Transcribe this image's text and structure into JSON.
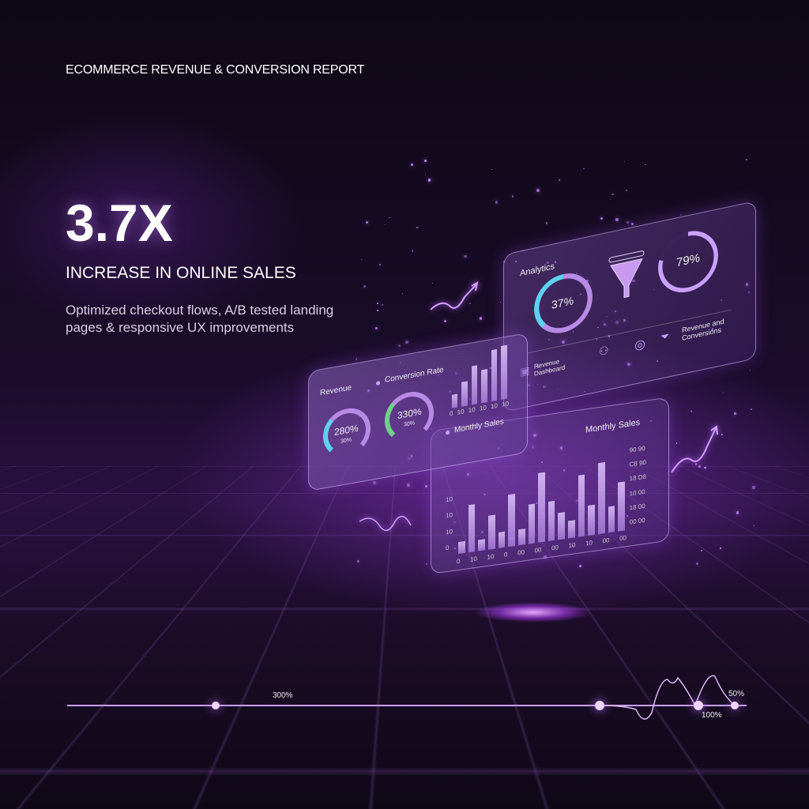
{
  "header": {
    "title": "ECOMMERCE REVENUE & CONVERSION REPORT"
  },
  "hero": {
    "metric": "3.7X",
    "headline": "INCREASE IN ONLINE SALES",
    "description": "Optimized checkout flows, A/B tested landing pages & responsive UX improvements"
  },
  "analytics_panel": {
    "title": "Analytics",
    "donut_value": "37%",
    "ring_value": "79%",
    "footer_left": "Revenue Dashboard",
    "footer_right": "Revenue and Conversions",
    "donut_fraction": 0.37,
    "ring_fraction": 0.79
  },
  "revenue_panel": {
    "title": "Revenue",
    "legend": "Conversion Rate",
    "gauge1_value": "280%",
    "gauge1_sub": "30%",
    "gauge2_value": "330%",
    "gauge2_sub": "30%",
    "mini_bars": [
      0.25,
      0.45,
      0.72,
      0.62,
      0.95,
      1.0
    ],
    "mini_labels": [
      "0",
      "10",
      "10",
      "10",
      "10",
      "10"
    ],
    "sales_label": "Monthly Sales"
  },
  "monthly_panel": {
    "title": "Monthly Sales",
    "y_labels": [
      "90 90",
      "C8 90",
      "18 D8",
      "10 00",
      "18 00",
      "00 00"
    ],
    "left_labels": [
      "10",
      "10",
      "10",
      "0"
    ],
    "bars": [
      0.15,
      0.6,
      0.14,
      0.43,
      0.2,
      0.66,
      0.2,
      0.5,
      0.88,
      0.5,
      0.34,
      0.22,
      0.78,
      0.38,
      0.9,
      0.33,
      0.62
    ],
    "x_labels": [
      "0",
      "10",
      "10",
      "0",
      "00",
      "00",
      "00",
      "10",
      "10",
      "00",
      "00"
    ]
  },
  "timeline": {
    "left_label": "300%",
    "right_label": "50%",
    "bottom_label": "100%"
  },
  "colors": {
    "accent": "#b46cff",
    "background": "#120a1c",
    "cyan": "#5fd0f0",
    "green": "#6fd08a"
  }
}
